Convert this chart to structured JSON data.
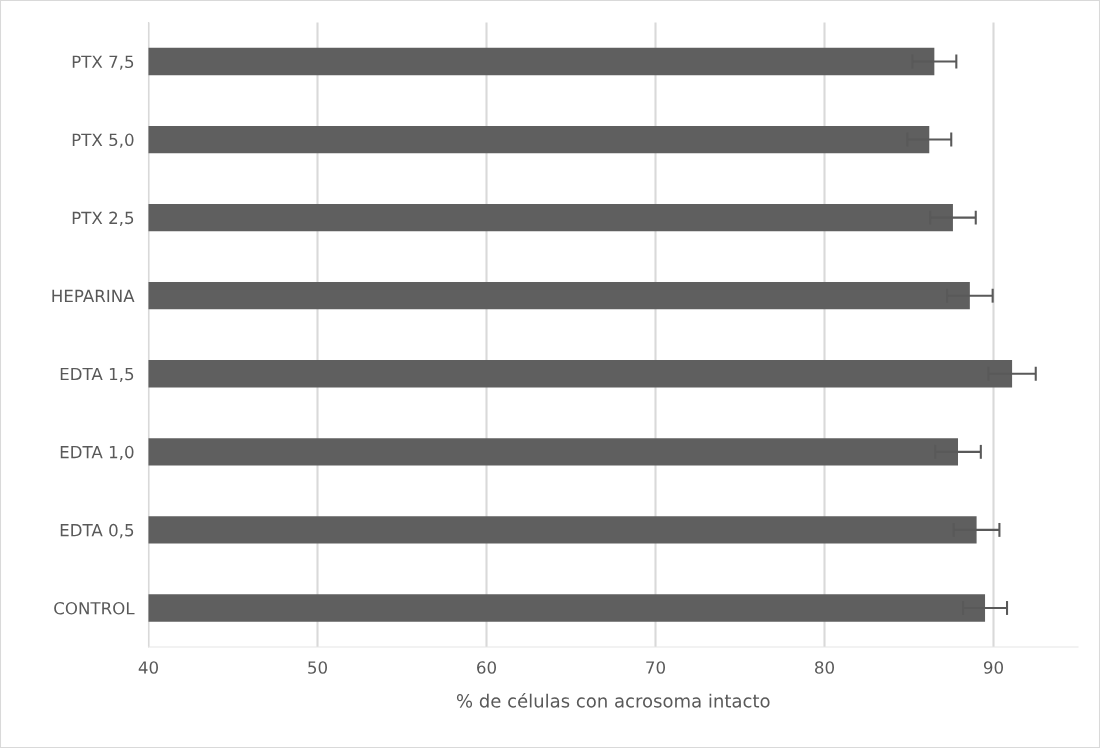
{
  "chart_data": {
    "type": "bar",
    "orientation": "horizontal",
    "xlabel": "% de células con acrosoma intacto",
    "categories": [
      "PTX 7,5",
      "PTX 5,0",
      "PTX 2,5",
      "HEPARINA",
      "EDTA 1,5",
      "EDTA 1,0",
      "EDTA 0,5",
      "CONTROL"
    ],
    "values": [
      86.5,
      86.2,
      87.6,
      88.6,
      91.1,
      87.9,
      89.0,
      89.5
    ],
    "errors": [
      1.3,
      1.3,
      1.35,
      1.35,
      1.4,
      1.35,
      1.35,
      1.3
    ],
    "color": "#5f5f5f",
    "xlim": [
      40,
      95
    ],
    "xticks": [
      40,
      50,
      60,
      70,
      80,
      90
    ],
    "grid": "x"
  }
}
